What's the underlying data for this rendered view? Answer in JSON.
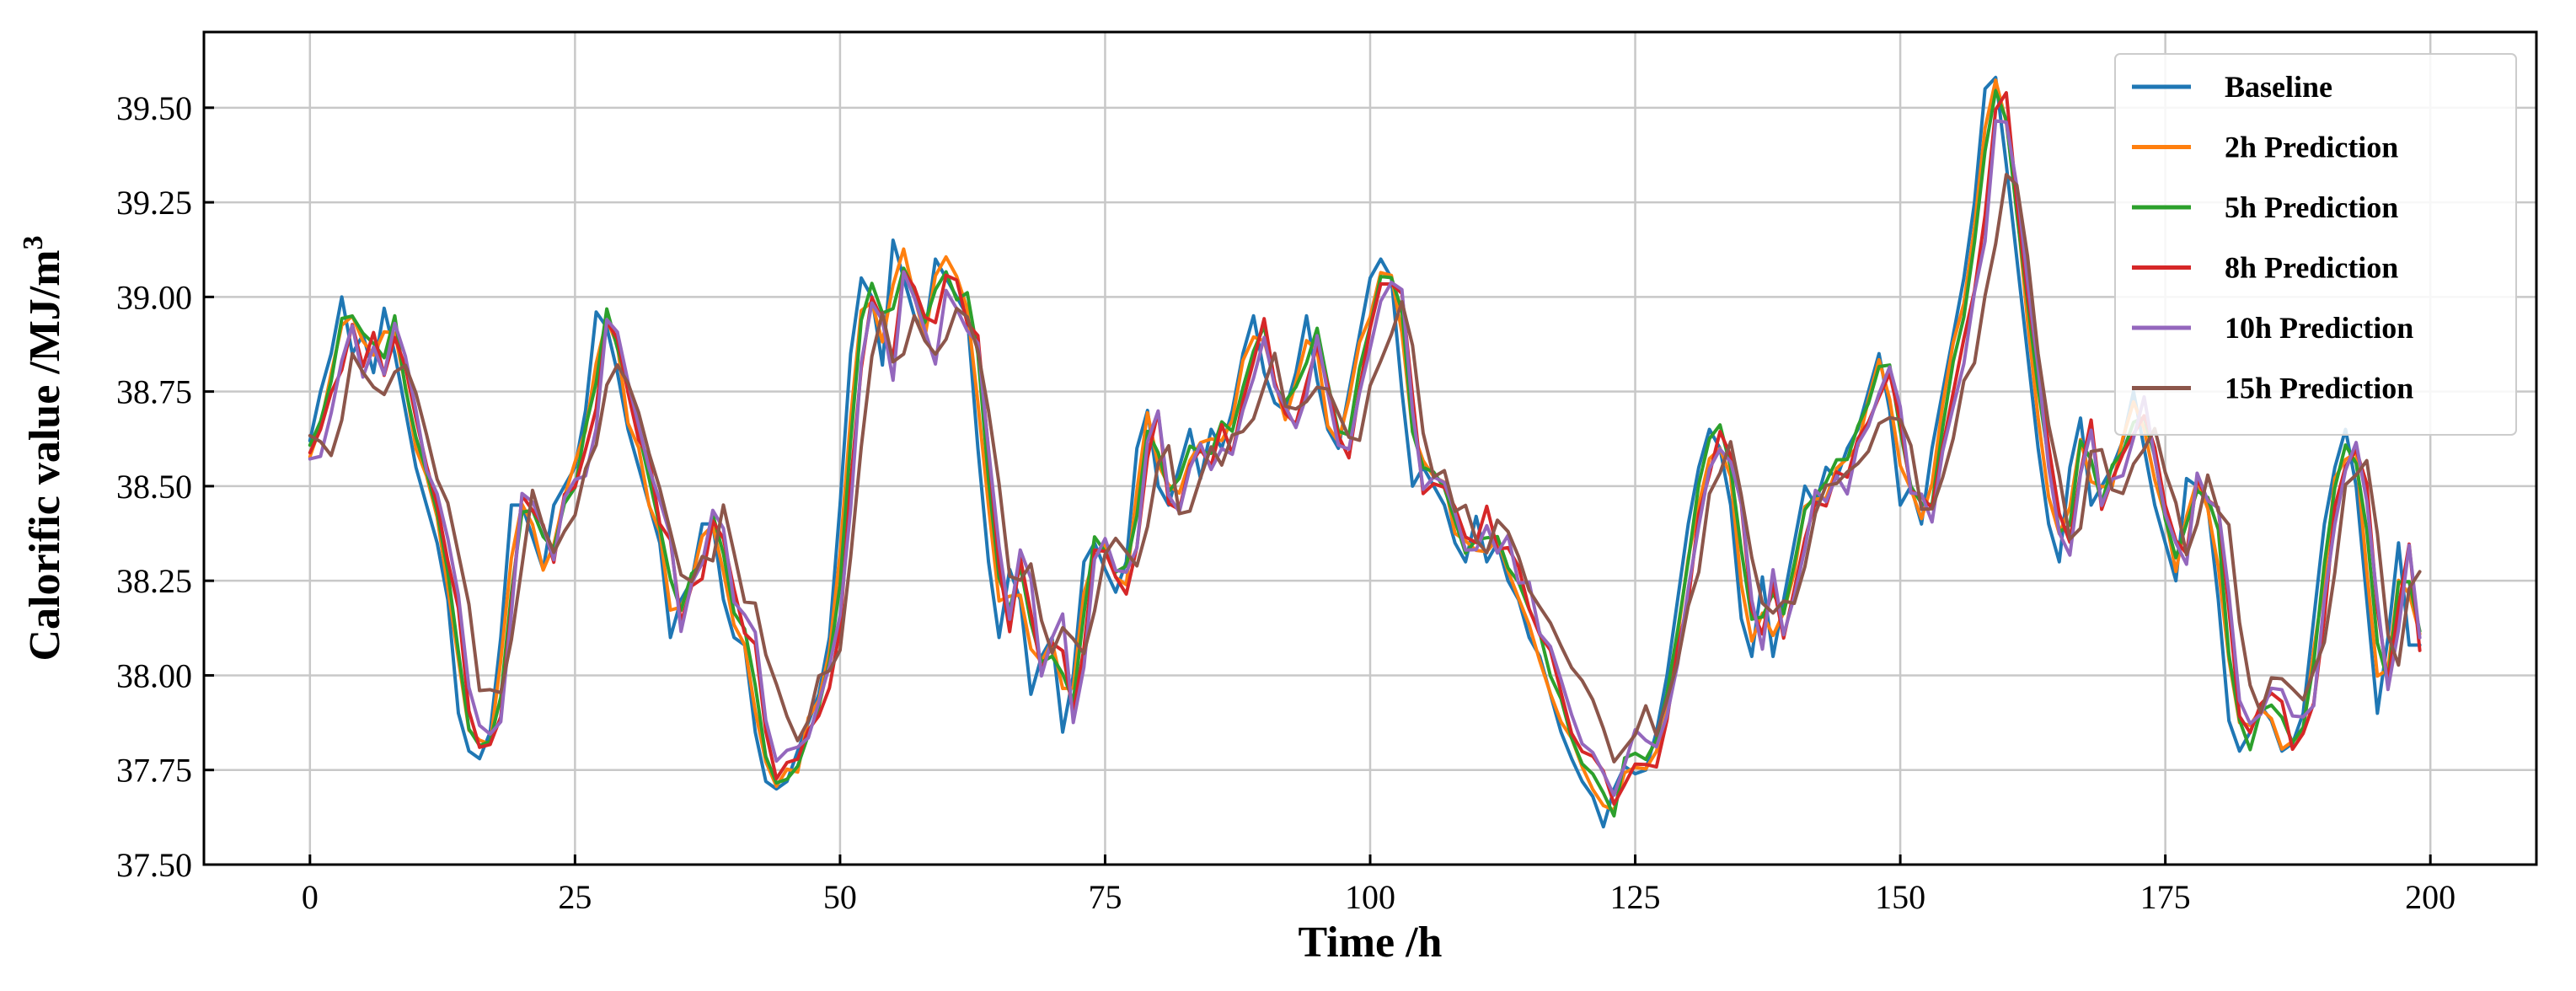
{
  "chart_data": {
    "type": "line",
    "xlabel": "Time /h",
    "ylabel_main": "Calorific value /MJ/m",
    "ylabel_superscript": "3",
    "xlim": [
      -10,
      210
    ],
    "ylim": [
      37.5,
      39.7
    ],
    "xticks": [
      0,
      25,
      50,
      75,
      100,
      125,
      150,
      175,
      200
    ],
    "yticks": [
      37.5,
      37.75,
      38.0,
      38.25,
      38.5,
      38.75,
      39.0,
      39.25,
      39.5
    ],
    "ytick_labels": [
      "37.50",
      "37.75",
      "38.00",
      "38.25",
      "38.50",
      "38.75",
      "39.00",
      "39.25",
      "39.50"
    ],
    "grid": true,
    "legend_position": "top-right",
    "baseline_anchors": [
      [
        0,
        38.62
      ],
      [
        1,
        38.75
      ],
      [
        2,
        38.85
      ],
      [
        3,
        39.0
      ],
      [
        4,
        38.85
      ],
      [
        5,
        38.9
      ],
      [
        6,
        38.8
      ],
      [
        7,
        38.97
      ],
      [
        8,
        38.85
      ],
      [
        10,
        38.55
      ],
      [
        12,
        38.35
      ],
      [
        13,
        38.2
      ],
      [
        14,
        37.9
      ],
      [
        15,
        37.8
      ],
      [
        16,
        37.78
      ],
      [
        17,
        37.85
      ],
      [
        18,
        38.1
      ],
      [
        19,
        38.45
      ],
      [
        20,
        38.45
      ],
      [
        22,
        38.28
      ],
      [
        23,
        38.45
      ],
      [
        25,
        38.55
      ],
      [
        26,
        38.7
      ],
      [
        27,
        38.96
      ],
      [
        28,
        38.92
      ],
      [
        29,
        38.8
      ],
      [
        30,
        38.65
      ],
      [
        32,
        38.45
      ],
      [
        33,
        38.35
      ],
      [
        34,
        38.1
      ],
      [
        35,
        38.2
      ],
      [
        36,
        38.25
      ],
      [
        37,
        38.4
      ],
      [
        38,
        38.4
      ],
      [
        39,
        38.2
      ],
      [
        40,
        38.1
      ],
      [
        41,
        38.08
      ],
      [
        42,
        37.85
      ],
      [
        43,
        37.72
      ],
      [
        44,
        37.7
      ],
      [
        45,
        37.72
      ],
      [
        46,
        37.8
      ],
      [
        48,
        37.95
      ],
      [
        49,
        38.1
      ],
      [
        50,
        38.45
      ],
      [
        51,
        38.85
      ],
      [
        52,
        39.05
      ],
      [
        53,
        39.0
      ],
      [
        54,
        38.82
      ],
      [
        55,
        39.15
      ],
      [
        56,
        39.05
      ],
      [
        57,
        38.95
      ],
      [
        58,
        38.9
      ],
      [
        59,
        39.1
      ],
      [
        60,
        39.05
      ],
      [
        62,
        38.95
      ],
      [
        63,
        38.6
      ],
      [
        64,
        38.3
      ],
      [
        65,
        38.1
      ],
      [
        66,
        38.28
      ],
      [
        67,
        38.2
      ],
      [
        68,
        37.95
      ],
      [
        69,
        38.05
      ],
      [
        70,
        38.1
      ],
      [
        71,
        37.85
      ],
      [
        72,
        38.0
      ],
      [
        73,
        38.3
      ],
      [
        74,
        38.35
      ],
      [
        75,
        38.28
      ],
      [
        76,
        38.22
      ],
      [
        77,
        38.3
      ],
      [
        78,
        38.6
      ],
      [
        79,
        38.7
      ],
      [
        80,
        38.5
      ],
      [
        81,
        38.45
      ],
      [
        82,
        38.55
      ],
      [
        83,
        38.65
      ],
      [
        84,
        38.52
      ],
      [
        85,
        38.65
      ],
      [
        86,
        38.6
      ],
      [
        87,
        38.7
      ],
      [
        88,
        38.85
      ],
      [
        89,
        38.95
      ],
      [
        90,
        38.8
      ],
      [
        91,
        38.72
      ],
      [
        92,
        38.7
      ],
      [
        93,
        38.8
      ],
      [
        94,
        38.95
      ],
      [
        95,
        38.78
      ],
      [
        96,
        38.65
      ],
      [
        97,
        38.6
      ],
      [
        98,
        38.75
      ],
      [
        99,
        38.9
      ],
      [
        100,
        39.05
      ],
      [
        101,
        39.1
      ],
      [
        102,
        39.05
      ],
      [
        103,
        38.75
      ],
      [
        104,
        38.5
      ],
      [
        105,
        38.55
      ],
      [
        106,
        38.5
      ],
      [
        107,
        38.45
      ],
      [
        108,
        38.35
      ],
      [
        109,
        38.3
      ],
      [
        110,
        38.42
      ],
      [
        111,
        38.3
      ],
      [
        112,
        38.35
      ],
      [
        113,
        38.25
      ],
      [
        114,
        38.2
      ],
      [
        115,
        38.1
      ],
      [
        116,
        38.05
      ],
      [
        117,
        37.95
      ],
      [
        118,
        37.85
      ],
      [
        119,
        37.78
      ],
      [
        120,
        37.72
      ],
      [
        121,
        37.68
      ],
      [
        122,
        37.6
      ],
      [
        123,
        37.7
      ],
      [
        124,
        37.76
      ],
      [
        125,
        37.74
      ],
      [
        126,
        37.75
      ],
      [
        127,
        37.85
      ],
      [
        128,
        38.0
      ],
      [
        130,
        38.4
      ],
      [
        131,
        38.55
      ],
      [
        132,
        38.65
      ],
      [
        133,
        38.6
      ],
      [
        134,
        38.45
      ],
      [
        135,
        38.15
      ],
      [
        136,
        38.05
      ],
      [
        137,
        38.26
      ],
      [
        138,
        38.05
      ],
      [
        139,
        38.2
      ],
      [
        140,
        38.35
      ],
      [
        141,
        38.5
      ],
      [
        142,
        38.45
      ],
      [
        143,
        38.55
      ],
      [
        144,
        38.52
      ],
      [
        145,
        38.6
      ],
      [
        146,
        38.65
      ],
      [
        147,
        38.75
      ],
      [
        148,
        38.85
      ],
      [
        149,
        38.7
      ],
      [
        150,
        38.45
      ],
      [
        151,
        38.5
      ],
      [
        152,
        38.4
      ],
      [
        153,
        38.6
      ],
      [
        154,
        38.75
      ],
      [
        155,
        38.9
      ],
      [
        156,
        39.05
      ],
      [
        157,
        39.25
      ],
      [
        158,
        39.55
      ],
      [
        159,
        39.58
      ],
      [
        160,
        39.35
      ],
      [
        161,
        39.1
      ],
      [
        162,
        38.85
      ],
      [
        163,
        38.6
      ],
      [
        164,
        38.4
      ],
      [
        165,
        38.3
      ],
      [
        166,
        38.55
      ],
      [
        167,
        38.68
      ],
      [
        168,
        38.45
      ],
      [
        169,
        38.5
      ],
      [
        170,
        38.55
      ],
      [
        171,
        38.62
      ],
      [
        172,
        38.75
      ],
      [
        173,
        38.6
      ],
      [
        174,
        38.45
      ],
      [
        175,
        38.35
      ],
      [
        176,
        38.25
      ],
      [
        177,
        38.52
      ],
      [
        178,
        38.5
      ],
      [
        179,
        38.45
      ],
      [
        180,
        38.2
      ],
      [
        181,
        37.88
      ],
      [
        182,
        37.8
      ],
      [
        183,
        37.85
      ],
      [
        184,
        37.92
      ],
      [
        185,
        37.88
      ],
      [
        186,
        37.8
      ],
      [
        187,
        37.82
      ],
      [
        188,
        37.9
      ],
      [
        189,
        38.15
      ],
      [
        190,
        38.4
      ],
      [
        191,
        38.55
      ],
      [
        192,
        38.65
      ],
      [
        193,
        38.5
      ],
      [
        194,
        38.2
      ],
      [
        195,
        37.9
      ],
      [
        196,
        38.1
      ],
      [
        197,
        38.35
      ],
      [
        198,
        38.08
      ],
      [
        199,
        38.08
      ]
    ],
    "series": [
      {
        "name": "Baseline",
        "color": "#1f77b4",
        "shift": 0,
        "amp": 0,
        "damp": 1.0,
        "lag": 0
      },
      {
        "name": "2h Prediction",
        "color": "#ff7f0e",
        "shift": 0,
        "amp": 0.045,
        "damp": 1.0,
        "lag": 0.4
      },
      {
        "name": "5h Prediction",
        "color": "#2ca02c",
        "shift": 0.01,
        "amp": 0.04,
        "damp": 0.98,
        "lag": 0.6
      },
      {
        "name": "8h Prediction",
        "color": "#d62728",
        "shift": 0,
        "amp": 0.04,
        "damp": 0.95,
        "lag": 0.9
      },
      {
        "name": "10h Prediction",
        "color": "#9467bd",
        "shift": 0,
        "amp": 0.035,
        "damp": 0.9,
        "lag": 1.0
      },
      {
        "name": "15h Prediction",
        "color": "#8c564b",
        "shift": 0,
        "amp": 0.05,
        "damp": 0.8,
        "lag": 1.6
      }
    ]
  }
}
